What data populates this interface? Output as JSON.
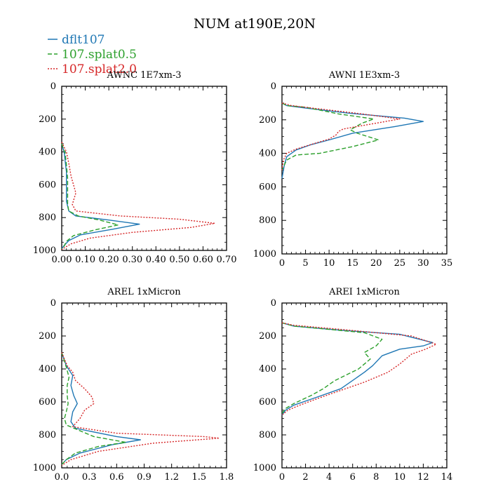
{
  "figure": {
    "title": "NUM at190E,20N",
    "legend": [
      {
        "name": "dflt107",
        "color": "#1f77b4",
        "dash": "solid"
      },
      {
        "name": "107.splat0.5",
        "color": "#2ca02c",
        "dash": "dashed"
      },
      {
        "name": "107.splat2.0",
        "color": "#d62728",
        "dash": "dotted"
      }
    ]
  },
  "chart_data": [
    {
      "type": "line",
      "title": "AWNC  1E7xm-3",
      "xlim": [
        0,
        0.7
      ],
      "ylim": [
        1000,
        0
      ],
      "xticks": [
        0,
        0.1,
        0.2,
        0.3,
        0.4,
        0.5,
        0.6,
        0.7
      ],
      "xticklabels": [
        "0.00",
        "0.10",
        "0.20",
        "0.30",
        "0.40",
        "0.50",
        "0.60",
        "0.70"
      ],
      "yticks": [
        0,
        200,
        400,
        600,
        800,
        1000
      ],
      "yticklabels": [
        "0",
        "200",
        "400",
        "600",
        "800",
        "1000"
      ],
      "series": [
        {
          "name": "dflt107",
          "points": [
            [
              0.0,
              350
            ],
            [
              0.01,
              400
            ],
            [
              0.015,
              460
            ],
            [
              0.02,
              520
            ],
            [
              0.02,
              600
            ],
            [
              0.02,
              700
            ],
            [
              0.03,
              760
            ],
            [
              0.06,
              790
            ],
            [
              0.2,
              815
            ],
            [
              0.33,
              840
            ],
            [
              0.22,
              870
            ],
            [
              0.08,
              905
            ],
            [
              0.03,
              940
            ],
            [
              0.01,
              970
            ],
            [
              0,
              990
            ]
          ]
        },
        {
          "name": "107.splat0.5",
          "points": [
            [
              0.0,
              350
            ],
            [
              0.015,
              410
            ],
            [
              0.02,
              480
            ],
            [
              0.025,
              560
            ],
            [
              0.025,
              650
            ],
            [
              0.025,
              720
            ],
            [
              0.03,
              760
            ],
            [
              0.07,
              790
            ],
            [
              0.16,
              815
            ],
            [
              0.24,
              845
            ],
            [
              0.14,
              875
            ],
            [
              0.05,
              910
            ],
            [
              0.02,
              945
            ],
            [
              0.01,
              975
            ],
            [
              0,
              990
            ]
          ]
        },
        {
          "name": "107.splat2.0",
          "points": [
            [
              0.0,
              340
            ],
            [
              0.02,
              400
            ],
            [
              0.03,
              470
            ],
            [
              0.04,
              550
            ],
            [
              0.05,
              600
            ],
            [
              0.06,
              650
            ],
            [
              0.045,
              720
            ],
            [
              0.06,
              760
            ],
            [
              0.25,
              790
            ],
            [
              0.5,
              810
            ],
            [
              0.65,
              835
            ],
            [
              0.55,
              860
            ],
            [
              0.3,
              890
            ],
            [
              0.12,
              925
            ],
            [
              0.04,
              960
            ],
            [
              0.01,
              985
            ],
            [
              0,
              995
            ]
          ]
        }
      ]
    },
    {
      "type": "line",
      "title": "AWNI  1E3xm-3",
      "xlim": [
        0,
        35
      ],
      "ylim": [
        1000,
        0
      ],
      "xticks": [
        0,
        5,
        10,
        15,
        20,
        25,
        30,
        35
      ],
      "xticklabels": [
        "0",
        "5",
        "10",
        "15",
        "20",
        "25",
        "30",
        "35"
      ],
      "yticks": [
        0,
        200,
        400,
        600,
        800,
        1000
      ],
      "yticklabels": [
        "0",
        "200",
        "400",
        "600",
        "800",
        "1000"
      ],
      "series": [
        {
          "name": "dflt107",
          "points": [
            [
              0,
              100
            ],
            [
              1,
              115
            ],
            [
              5,
              130
            ],
            [
              14,
              160
            ],
            [
              26,
              190
            ],
            [
              30,
              210
            ],
            [
              24,
              240
            ],
            [
              15,
              280
            ],
            [
              10,
              320
            ],
            [
              6,
              350
            ],
            [
              3,
              380
            ],
            [
              1,
              420
            ],
            [
              0.5,
              470
            ],
            [
              0,
              550
            ]
          ]
        },
        {
          "name": "107.splat0.5",
          "points": [
            [
              0,
              100
            ],
            [
              1,
              115
            ],
            [
              5,
              125
            ],
            [
              12,
              165
            ],
            [
              19.5,
              195
            ],
            [
              17,
              220
            ],
            [
              14.5,
              260
            ],
            [
              16,
              280
            ],
            [
              20.5,
              320
            ],
            [
              15,
              360
            ],
            [
              8,
              400
            ],
            [
              3,
              410
            ],
            [
              1,
              440
            ],
            [
              0,
              500
            ]
          ]
        },
        {
          "name": "107.splat2.0",
          "points": [
            [
              0,
              100
            ],
            [
              2,
              115
            ],
            [
              8,
              135
            ],
            [
              17,
              165
            ],
            [
              25,
              195
            ],
            [
              21,
              215
            ],
            [
              13,
              255
            ],
            [
              12,
              270
            ],
            [
              11.5,
              290
            ],
            [
              10,
              315
            ],
            [
              7,
              340
            ],
            [
              3,
              375
            ],
            [
              1,
              400
            ],
            [
              0.3,
              440
            ],
            [
              0,
              500
            ]
          ]
        }
      ]
    },
    {
      "type": "line",
      "title": "AREL  1xMicron",
      "xlim": [
        0,
        1.8
      ],
      "ylim": [
        1000,
        0
      ],
      "xticks": [
        0,
        0.3,
        0.6,
        0.9,
        1.2,
        1.5,
        1.8
      ],
      "xticklabels": [
        "0.0",
        "0.3",
        "0.6",
        "0.9",
        "1.2",
        "1.5",
        "1.8"
      ],
      "yticks": [
        0,
        200,
        400,
        600,
        800,
        1000
      ],
      "yticklabels": [
        "0",
        "200",
        "400",
        "600",
        "800",
        "1000"
      ],
      "series": [
        {
          "name": "dflt107",
          "points": [
            [
              0,
              300
            ],
            [
              0.05,
              380
            ],
            [
              0.12,
              440
            ],
            [
              0.1,
              500
            ],
            [
              0.13,
              560
            ],
            [
              0.17,
              610
            ],
            [
              0.12,
              660
            ],
            [
              0.1,
              720
            ],
            [
              0.15,
              760
            ],
            [
              0.6,
              810
            ],
            [
              0.86,
              830
            ],
            [
              0.55,
              860
            ],
            [
              0.2,
              910
            ],
            [
              0.05,
              950
            ],
            [
              0,
              980
            ]
          ]
        },
        {
          "name": "107.splat0.5",
          "points": [
            [
              0,
              300
            ],
            [
              0.05,
              390
            ],
            [
              0.08,
              450
            ],
            [
              0.06,
              500
            ],
            [
              0.06,
              560
            ],
            [
              0.07,
              610
            ],
            [
              0.05,
              660
            ],
            [
              0.03,
              700
            ],
            [
              0.05,
              740
            ],
            [
              0.35,
              810
            ],
            [
              0.7,
              845
            ],
            [
              0.4,
              870
            ],
            [
              0.15,
              910
            ],
            [
              0.05,
              950
            ],
            [
              0,
              980
            ]
          ]
        },
        {
          "name": "107.splat2.0",
          "points": [
            [
              0,
              300
            ],
            [
              0.06,
              380
            ],
            [
              0.12,
              420
            ],
            [
              0.15,
              470
            ],
            [
              0.25,
              520
            ],
            [
              0.33,
              570
            ],
            [
              0.35,
              610
            ],
            [
              0.25,
              650
            ],
            [
              0.2,
              700
            ],
            [
              0.12,
              750
            ],
            [
              0.6,
              790
            ],
            [
              1.55,
              810
            ],
            [
              1.72,
              820
            ],
            [
              1.0,
              850
            ],
            [
              0.4,
              900
            ],
            [
              0.1,
              950
            ],
            [
              0,
              985
            ]
          ]
        }
      ]
    },
    {
      "type": "line",
      "title": "AREI  1xMicron",
      "xlim": [
        0,
        14
      ],
      "ylim": [
        1000,
        0
      ],
      "xticks": [
        0,
        2,
        4,
        6,
        8,
        10,
        12,
        14
      ],
      "xticklabels": [
        "0",
        "2",
        "4",
        "6",
        "8",
        "10",
        "12",
        "14"
      ],
      "yticks": [
        0,
        200,
        400,
        600,
        800,
        1000
      ],
      "yticklabels": [
        "0",
        "200",
        "400",
        "600",
        "800",
        "1000"
      ],
      "series": [
        {
          "name": "dflt107",
          "points": [
            [
              0,
              120
            ],
            [
              1,
              140
            ],
            [
              5,
              165
            ],
            [
              10,
              190
            ],
            [
              12.8,
              240
            ],
            [
              12,
              260
            ],
            [
              10,
              280
            ],
            [
              8.5,
              320
            ],
            [
              7.7,
              380
            ],
            [
              7,
              420
            ],
            [
              5,
              520
            ],
            [
              3,
              570
            ],
            [
              1,
              620
            ],
            [
              0.3,
              650
            ],
            [
              0,
              680
            ]
          ]
        },
        {
          "name": "107.splat0.5",
          "points": [
            [
              0,
              120
            ],
            [
              1,
              140
            ],
            [
              4,
              160
            ],
            [
              7,
              180
            ],
            [
              8.5,
              220
            ],
            [
              8,
              260
            ],
            [
              7,
              300
            ],
            [
              7.5,
              340
            ],
            [
              6.5,
              400
            ],
            [
              4.5,
              470
            ],
            [
              3.5,
              520
            ],
            [
              2.5,
              560
            ],
            [
              1,
              610
            ],
            [
              0.3,
              640
            ],
            [
              0,
              670
            ]
          ]
        },
        {
          "name": "107.splat2.0",
          "points": [
            [
              0,
              120
            ],
            [
              1,
              135
            ],
            [
              5,
              160
            ],
            [
              11,
              200
            ],
            [
              13.1,
              250
            ],
            [
              12.2,
              280
            ],
            [
              11,
              310
            ],
            [
              10,
              370
            ],
            [
              9,
              420
            ],
            [
              7,
              480
            ],
            [
              5,
              530
            ],
            [
              3,
              580
            ],
            [
              1.5,
              620
            ],
            [
              0.5,
              650
            ],
            [
              0,
              680
            ]
          ]
        }
      ]
    }
  ]
}
